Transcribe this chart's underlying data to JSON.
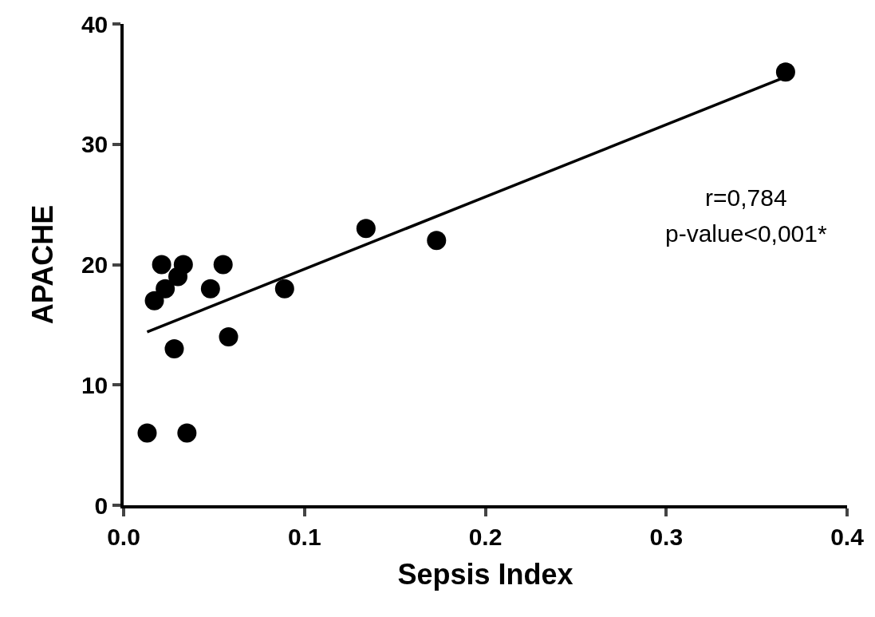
{
  "chart_data": {
    "type": "scatter",
    "xlabel": "Sepsis Index",
    "ylabel": "APACHE",
    "xlim": [
      0,
      0.4
    ],
    "xticks": [
      {
        "value": 0,
        "label": "0.0"
      },
      0.1,
      0.2,
      0.3,
      0.4
    ],
    "ylim": [
      0,
      40
    ],
    "yticks": [
      0,
      10,
      20,
      30,
      40
    ],
    "grid": false,
    "marker": "circle",
    "series": [
      {
        "color": "#000000",
        "x": [
          0.013,
          0.035,
          0.017,
          0.021,
          0.033,
          0.055,
          0.03,
          0.023,
          0.048,
          0.089,
          0.028,
          0.058,
          0.134,
          0.173,
          0.366
        ],
        "values": [
          6,
          6,
          17,
          20,
          20,
          20,
          19,
          18,
          18,
          18,
          13,
          14,
          23,
          22,
          36
        ]
      },
      {
        "type": "line",
        "color": "#000000",
        "marker": "none",
        "line_style": "solid",
        "x": [
          0.013,
          0.366
        ],
        "values": [
          14.4,
          35.6
        ]
      }
    ],
    "annotations": [
      "r=0,784",
      "p-value<0,001*"
    ]
  }
}
